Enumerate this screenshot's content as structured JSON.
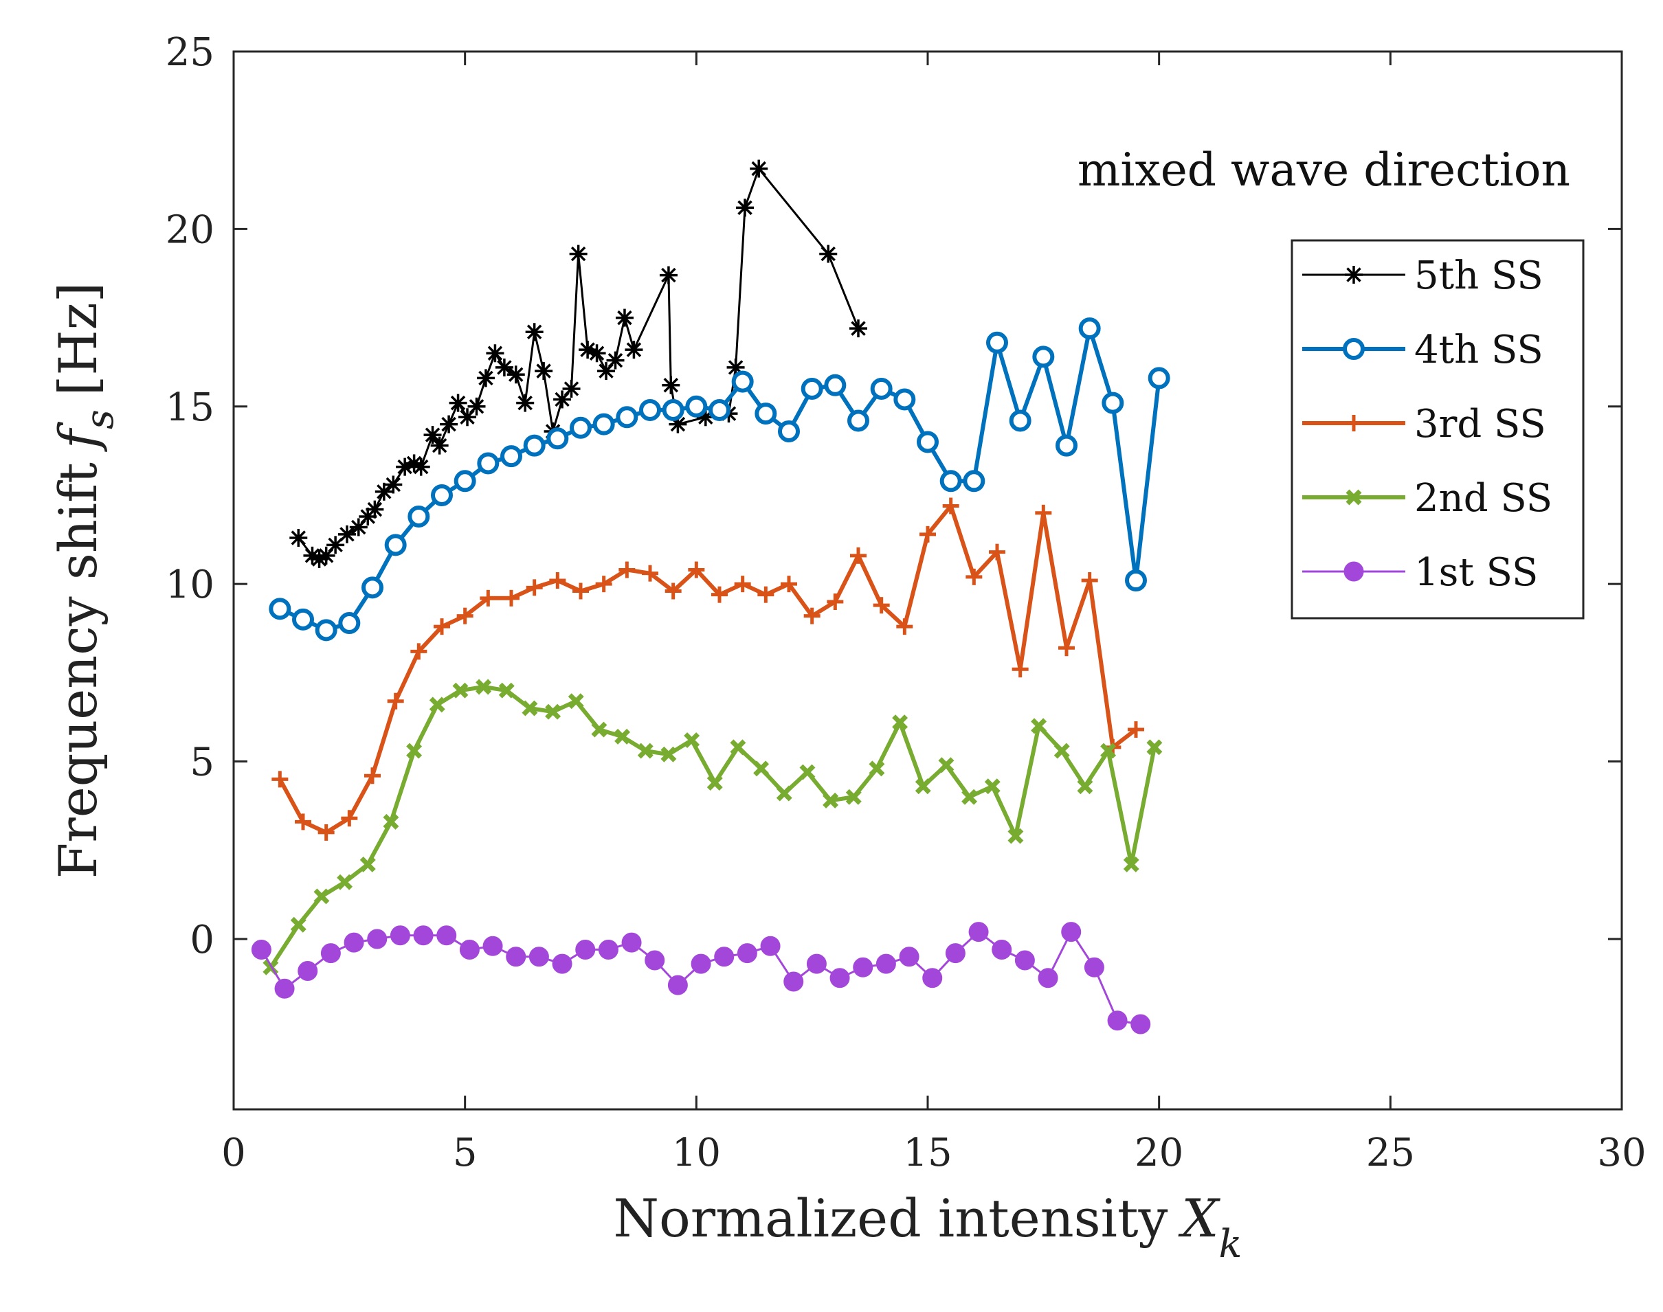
{
  "chart_data": {
    "type": "line",
    "title": "",
    "annotation": "mixed wave direction",
    "xlabel": "Normalized intensity",
    "xlabel_symbol": "X",
    "xlabel_subscript": "k",
    "ylabel": "Frequency shift",
    "ylabel_symbol": "f",
    "ylabel_subscript": "s",
    "ylabel_unit": "[Hz]",
    "xlim": [
      0,
      30
    ],
    "ylim": [
      -4.8,
      25
    ],
    "xticks": [
      0,
      5,
      10,
      15,
      20,
      25,
      30
    ],
    "yticks": [
      0,
      5,
      10,
      15,
      20,
      25
    ],
    "grid": false,
    "legend_position": "upper-right",
    "series": [
      {
        "name": "5th SS",
        "color": "#000000",
        "marker": "asterisk",
        "line_width": "thin",
        "x": [
          1.4,
          1.7,
          1.85,
          2.0,
          2.2,
          2.45,
          2.7,
          2.9,
          3.05,
          3.25,
          3.45,
          3.7,
          3.9,
          4.05,
          4.3,
          4.45,
          4.65,
          4.85,
          5.05,
          5.25,
          5.45,
          5.65,
          5.85,
          6.1,
          6.3,
          6.5,
          6.7,
          6.9,
          7.1,
          7.3,
          7.45,
          7.65,
          7.85,
          8.05,
          8.25,
          8.45,
          8.65,
          9.4,
          9.45,
          9.6,
          10.2,
          10.7,
          10.85,
          11.05,
          11.35,
          12.85,
          13.5
        ],
        "y": [
          11.3,
          10.8,
          10.7,
          10.8,
          11.1,
          11.4,
          11.6,
          11.9,
          12.1,
          12.6,
          12.8,
          13.3,
          13.4,
          13.3,
          14.2,
          13.9,
          14.5,
          15.1,
          14.7,
          15.0,
          15.8,
          16.5,
          16.1,
          15.9,
          15.1,
          17.1,
          16.0,
          14.3,
          15.2,
          15.5,
          19.3,
          16.6,
          16.5,
          16.0,
          16.3,
          17.5,
          16.6,
          18.7,
          15.6,
          14.5,
          14.7,
          14.8,
          16.1,
          20.6,
          21.7,
          19.3,
          17.2
        ]
      },
      {
        "name": "4th SS",
        "color": "#0072BD",
        "marker": "circle-open",
        "line_width": "thick",
        "x": [
          1.0,
          1.5,
          2.0,
          2.5,
          3.0,
          3.5,
          4.0,
          4.5,
          5.0,
          5.5,
          6.0,
          6.5,
          7.0,
          7.5,
          8.0,
          8.5,
          9.0,
          9.5,
          10.0,
          10.5,
          11.0,
          11.5,
          12.0,
          12.5,
          13.0,
          13.5,
          14.0,
          14.5,
          15.0,
          15.5,
          16.0,
          16.5,
          17.0,
          17.5,
          18.0,
          18.5,
          19.0,
          19.5,
          20.0
        ],
        "y": [
          9.3,
          9.0,
          8.7,
          8.9,
          9.9,
          11.1,
          11.9,
          12.5,
          12.9,
          13.4,
          13.6,
          13.9,
          14.1,
          14.4,
          14.5,
          14.7,
          14.9,
          14.9,
          15.0,
          14.9,
          15.7,
          14.8,
          14.3,
          15.5,
          15.6,
          14.6,
          15.5,
          15.2,
          14.0,
          12.9,
          12.9,
          16.8,
          14.6,
          16.4,
          13.9,
          17.2,
          15.1,
          10.1,
          15.8
        ]
      },
      {
        "name": "3rd SS",
        "color": "#D95319",
        "marker": "plus",
        "line_width": "thick",
        "x": [
          1.0,
          1.5,
          2.0,
          2.5,
          3.0,
          3.5,
          4.0,
          4.5,
          5.0,
          5.5,
          6.0,
          6.5,
          7.0,
          7.5,
          8.0,
          8.5,
          9.0,
          9.5,
          10.0,
          10.5,
          11.0,
          11.5,
          12.0,
          12.5,
          13.0,
          13.5,
          14.0,
          14.5,
          15.0,
          15.5,
          16.0,
          16.5,
          17.0,
          17.5,
          18.0,
          18.5,
          19.0,
          19.5
        ],
        "y": [
          4.5,
          3.3,
          3.0,
          3.4,
          4.6,
          6.7,
          8.1,
          8.8,
          9.1,
          9.6,
          9.6,
          9.9,
          10.1,
          9.8,
          10.0,
          10.4,
          10.3,
          9.8,
          10.4,
          9.7,
          10.0,
          9.7,
          10.0,
          9.1,
          9.5,
          10.8,
          9.4,
          8.8,
          11.4,
          12.2,
          10.2,
          10.9,
          7.6,
          12.0,
          8.2,
          10.1,
          5.4,
          5.9
        ]
      },
      {
        "name": "2nd SS",
        "color": "#77AC30",
        "marker": "x-filled",
        "line_width": "thick",
        "x": [
          0.8,
          1.4,
          1.9,
          2.4,
          2.9,
          3.4,
          3.9,
          4.4,
          4.9,
          5.4,
          5.9,
          6.4,
          6.9,
          7.4,
          7.9,
          8.4,
          8.9,
          9.4,
          9.9,
          10.4,
          10.9,
          11.4,
          11.9,
          12.4,
          12.9,
          13.4,
          13.9,
          14.4,
          14.9,
          15.4,
          15.9,
          16.4,
          16.9,
          17.4,
          17.9,
          18.4,
          18.9,
          19.4,
          19.9
        ],
        "y": [
          -0.8,
          0.4,
          1.2,
          1.6,
          2.1,
          3.3,
          5.3,
          6.6,
          7.0,
          7.1,
          7.0,
          6.5,
          6.4,
          6.7,
          5.9,
          5.7,
          5.3,
          5.2,
          5.6,
          4.4,
          5.4,
          4.8,
          4.1,
          4.7,
          3.9,
          4.0,
          4.8,
          6.1,
          4.3,
          4.9,
          4.0,
          4.3,
          2.9,
          6.0,
          5.3,
          4.3,
          5.3,
          2.1,
          5.4
        ]
      },
      {
        "name": "1st SS",
        "color": "#A347DB",
        "marker": "circle-filled",
        "line_width": "thin",
        "x": [
          0.6,
          1.1,
          1.6,
          2.1,
          2.6,
          3.1,
          3.6,
          4.1,
          4.6,
          5.1,
          5.6,
          6.1,
          6.6,
          7.1,
          7.6,
          8.1,
          8.6,
          9.1,
          9.6,
          10.1,
          10.6,
          11.1,
          11.6,
          12.1,
          12.6,
          13.1,
          13.6,
          14.1,
          14.6,
          15.1,
          15.6,
          16.1,
          16.6,
          17.1,
          17.6,
          18.1,
          18.6,
          19.1,
          19.6
        ],
        "y": [
          -0.3,
          -1.4,
          -0.9,
          -0.4,
          -0.1,
          0.0,
          0.1,
          0.1,
          0.1,
          -0.3,
          -0.2,
          -0.5,
          -0.5,
          -0.7,
          -0.3,
          -0.3,
          -0.1,
          -0.6,
          -1.3,
          -0.7,
          -0.5,
          -0.4,
          -0.2,
          -1.2,
          -0.7,
          -1.1,
          -0.8,
          -0.7,
          -0.5,
          -1.1,
          -0.4,
          0.2,
          -0.3,
          -0.6,
          -1.1,
          0.2,
          -0.8,
          -2.3,
          -2.4
        ]
      }
    ]
  }
}
